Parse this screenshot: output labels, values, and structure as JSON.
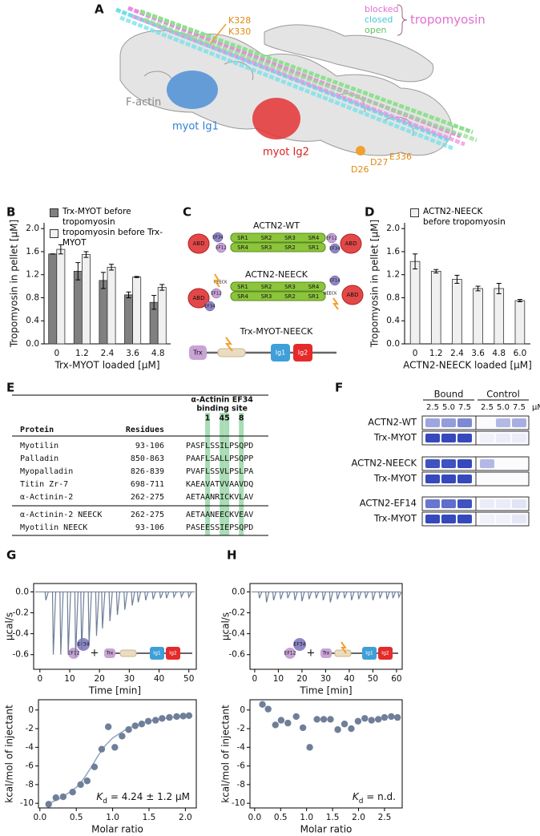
{
  "figure_a": {
    "panel": "A",
    "labels": {
      "blocked": "blocked",
      "closed": "closed",
      "open": "open",
      "tropomyosin": "tropomyosin",
      "k328": "K328",
      "k330": "K330",
      "f_actin": "F-actin",
      "ig1": "myot Ig1",
      "ig2": "myot Ig2",
      "d26": "D26",
      "d27": "D27",
      "e336": "E336"
    }
  },
  "chart_data": [
    {
      "panel": "B",
      "type": "bar",
      "y_label": "Tropomyosin in pellet [µM]",
      "x_label": "Trx-MYOT loaded [µM]",
      "categories": [
        "0",
        "1.2",
        "2.4",
        "3.6",
        "4.8"
      ],
      "series": [
        {
          "name": "Trx-MYOT before tropomyosin",
          "color": "#808080",
          "values": [
            1.56,
            1.26,
            1.1,
            0.85,
            0.72
          ],
          "errors": [
            0,
            0.15,
            0.14,
            0.05,
            0.12
          ]
        },
        {
          "name": "tropomyosin before Trx-MYOT",
          "color": "#f0f0f0",
          "values": [
            1.64,
            1.55,
            1.33,
            1.16,
            0.98
          ],
          "errors": [
            0.08,
            0.05,
            0.05,
            0.01,
            0.05
          ]
        }
      ],
      "ylim": [
        0,
        2.1
      ],
      "yticks": [
        {
          "value": 0,
          "label": "0.0"
        },
        0.4,
        0.8,
        1.2,
        1.6,
        {
          "value": 2,
          "label": "2.0"
        }
      ]
    },
    {
      "panel": "D",
      "type": "bar",
      "y_label": "Tropomyosin in pellet [µM]",
      "x_label": "ACTN2-NEECK loaded [µM]",
      "categories": [
        "0",
        "1.2",
        "2.4",
        "3.6",
        "4.8",
        "6.0"
      ],
      "series": [
        {
          "name": "ACTN2-NEECK before tropomyosin",
          "color": "#f0f0f0",
          "values": [
            1.43,
            1.26,
            1.12,
            0.96,
            0.96,
            0.75
          ],
          "errors": [
            0.13,
            0.03,
            0.07,
            0.04,
            0.09,
            0.02
          ]
        }
      ],
      "ylim": [
        0,
        2.1
      ],
      "yticks": [
        {
          "value": 0,
          "label": "0.0"
        },
        0.4,
        0.8,
        1.2,
        1.6,
        {
          "value": 2,
          "label": "2.0"
        }
      ]
    },
    {
      "panel": "G",
      "type": "spike",
      "y_label": "µcal/s",
      "x_label": "Time [min]",
      "color": "#6f7f99",
      "x": [
        2,
        4.5,
        7,
        9.5,
        12,
        14,
        16.5,
        19,
        21,
        23.5,
        26,
        28.5,
        31,
        33,
        35.5,
        38,
        40.5,
        42.5,
        45,
        47.5,
        50
      ],
      "values": [
        -0.08,
        -0.6,
        -0.6,
        -0.6,
        -0.62,
        -0.55,
        -0.5,
        -0.42,
        -0.35,
        -0.28,
        -0.22,
        -0.17,
        -0.13,
        -0.1,
        -0.08,
        -0.07,
        -0.06,
        -0.06,
        -0.05,
        -0.05,
        -0.05
      ],
      "xlim": [
        -2.1,
        52.5
      ],
      "xticks": [
        0,
        10,
        20,
        30,
        40,
        50
      ],
      "ylim": [
        -0.74,
        0.08
      ],
      "yticks": [
        {
          "value": 0,
          "label": "0.0"
        },
        -0.2,
        -0.4,
        -0.6
      ]
    },
    {
      "type": "scatter",
      "y_label": "kcal/mol of injectant",
      "x_label": "Molar ratio",
      "color": "#6f7f99",
      "x": [
        0.12,
        0.22,
        0.32,
        0.45,
        0.56,
        0.65,
        0.75,
        0.85,
        0.94,
        1.03,
        1.13,
        1.22,
        1.31,
        1.4,
        1.49,
        1.59,
        1.68,
        1.78,
        1.88,
        1.97,
        2.05
      ],
      "values": [
        -10.1,
        -9.4,
        -9.3,
        -8.8,
        -8,
        -7.6,
        -6.1,
        -4.2,
        -1.8,
        -4,
        -2.8,
        -2.1,
        -1.7,
        -1.5,
        -1.2,
        -1.1,
        -0.9,
        -0.8,
        -0.7,
        -0.65,
        -0.6
      ],
      "fit": {
        "color": "#8fa6c4",
        "x": [
          0.1,
          0.3,
          0.5,
          0.6,
          0.7,
          0.8,
          0.9,
          1,
          1.2,
          1.4,
          1.6,
          1.8,
          2
        ],
        "values": [
          -10.1,
          -9.4,
          -8.3,
          -7.4,
          -6.2,
          -4.9,
          -3.8,
          -3,
          -2,
          -1.4,
          -1,
          -0.8,
          -0.7
        ]
      },
      "xlim": [
        -0.02,
        2.15
      ],
      "xticks": [
        {
          "value": 0,
          "label": "0.0"
        },
        0.5,
        {
          "value": 1,
          "label": "1.0"
        },
        1.5,
        {
          "value": 2,
          "label": "2.0"
        }
      ],
      "ylim": [
        -10.5,
        1.1
      ],
      "yticks": [
        0,
        -2,
        -4,
        -6,
        -8,
        -10
      ],
      "annotation": {
        "symbol": "K",
        "subscript": "d",
        "text": " = 4.24 ± 1.2 µM"
      }
    },
    {
      "panel": "H",
      "type": "spike",
      "y_label": "µcal/s",
      "x_label": "Time [min]",
      "color": "#6f7f99",
      "x": [
        2,
        5,
        8,
        11,
        14,
        17,
        20,
        23,
        26,
        29,
        32,
        35,
        38,
        41,
        44,
        47,
        50,
        53,
        56,
        58.5,
        61
      ],
      "values": [
        -0.06,
        -0.1,
        -0.08,
        -0.07,
        -0.06,
        -0.08,
        -0.09,
        -0.07,
        -0.06,
        -0.08,
        -0.1,
        -0.07,
        -0.06,
        -0.08,
        -0.07,
        -0.06,
        -0.08,
        -0.06,
        -0.07,
        -0.06,
        -0.05
      ],
      "xlim": [
        -2,
        62.4
      ],
      "xticks": [
        0,
        10,
        20,
        30,
        40,
        50,
        60
      ],
      "ylim": [
        -0.74,
        0.08
      ],
      "yticks": [
        {
          "value": 0,
          "label": "0.0"
        },
        -0.2,
        -0.4,
        -0.6
      ]
    },
    {
      "type": "scatter",
      "y_label": "kcal/mol of injectant",
      "x_label": "Molar ratio",
      "color": "#6f7f99",
      "x": [
        0.15,
        0.26,
        0.4,
        0.51,
        0.64,
        0.8,
        0.93,
        1.06,
        1.2,
        1.33,
        1.46,
        1.6,
        1.73,
        1.86,
        1.99,
        2.12,
        2.25,
        2.38,
        2.5,
        2.63,
        2.75
      ],
      "values": [
        0.6,
        0.1,
        -1.6,
        -1.1,
        -1.4,
        -0.7,
        -1.9,
        -4,
        -1,
        -1,
        -1,
        -2.1,
        -1.5,
        -2,
        -1.2,
        -0.9,
        -1.1,
        -1,
        -0.8,
        -0.7,
        -0.8
      ],
      "xlim": [
        -0.09,
        2.84
      ],
      "xticks": [
        {
          "value": 0,
          "label": "0.0"
        },
        0.5,
        {
          "value": 1,
          "label": "1.0"
        },
        1.5,
        {
          "value": 2,
          "label": "2.0"
        },
        2.5
      ],
      "ylim": [
        -10.5,
        1.1
      ],
      "yticks": [
        0,
        -2,
        -4,
        -6,
        -8,
        -10
      ],
      "annotation": {
        "symbol": "K",
        "subscript": "d",
        "text": " = n.d."
      }
    }
  ],
  "diagram_c": {
    "panel": "C",
    "constructs": [
      "ACTN2-WT",
      "ACTN2-NEECK",
      "Trx-MYOT-NEECK"
    ],
    "domains": {
      "abd": "ABD",
      "ef12": "EF12",
      "ef34": "EF34",
      "ef14": "EF14",
      "neeck": "NEECK",
      "sr": [
        "SR1",
        "SR2",
        "SR3",
        "SR4"
      ],
      "trx": "Trx",
      "ig1": "Ig1",
      "ig2": "Ig2"
    },
    "plus": "+"
  },
  "table_e": {
    "panel": "E",
    "header": [
      "Protein",
      "Residues"
    ],
    "group_header": [
      "α-Actinin EF34",
      "binding site"
    ],
    "positions": [
      "1",
      "45",
      "8"
    ],
    "rows": [
      [
        "Myotilin",
        "93-106",
        "PASFLSSILPSQPD"
      ],
      [
        "Palladin",
        "850-863",
        "PAAFLSALLPSQPP"
      ],
      [
        "Myopalladin",
        "826-839",
        "PVAFLSSVLPSLPA"
      ],
      [
        "Titin Zr-7",
        "698-711",
        "KAEAVATVVAAVDQ"
      ],
      [
        "α-Actinin-2",
        "262-275",
        "AETAANRICKVLAV"
      ],
      [
        "α-Actinin-2 NEECK",
        "262-275",
        "AETAANEECKVEAV"
      ],
      [
        "Myotilin NEECK",
        "93-106",
        "PASEESSIEPSQPD"
      ]
    ]
  },
  "gel_f": {
    "panel": "F",
    "groups": [
      "Bound",
      "Control"
    ],
    "concentrations": [
      "2.5",
      "5.0",
      "7.5"
    ],
    "unit": "µM",
    "rows": [
      "ACTN2-WT",
      "Trx-MYOT",
      "ACTN2-NEECK",
      "Trx-MYOT",
      "ACTN2-EF14",
      "Trx-MYOT"
    ]
  }
}
